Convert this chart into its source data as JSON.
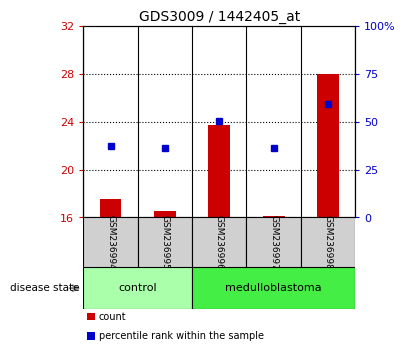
{
  "title": "GDS3009 / 1442405_at",
  "samples": [
    "GSM236994",
    "GSM236995",
    "GSM236996",
    "GSM236997",
    "GSM236998"
  ],
  "count_values": [
    17.5,
    16.5,
    23.7,
    16.1,
    28.0
  ],
  "percentile_values": [
    22.0,
    21.8,
    24.1,
    21.8,
    25.5
  ],
  "ylim_left": [
    16,
    32
  ],
  "ylim_right": [
    0,
    100
  ],
  "yticks_left": [
    16,
    20,
    24,
    28,
    32
  ],
  "yticks_right": [
    0,
    25,
    50,
    75,
    100
  ],
  "ytick_labels_right": [
    "0",
    "25",
    "50",
    "75",
    "100%"
  ],
  "bar_color": "#cc0000",
  "dot_color": "#0000cc",
  "bar_baseline": 16,
  "groups": [
    {
      "label": "control",
      "indices": [
        0,
        1
      ],
      "color": "#aaffaa"
    },
    {
      "label": "medulloblastoma",
      "indices": [
        2,
        3,
        4
      ],
      "color": "#44ee44"
    }
  ],
  "group_label": "disease state",
  "legend_items": [
    {
      "label": "count",
      "color": "#cc0000"
    },
    {
      "label": "percentile rank within the sample",
      "color": "#0000cc"
    }
  ],
  "tick_color_left": "#cc0000",
  "tick_color_right": "#0000cc",
  "background_color": "#ffffff",
  "plot_bg": "#ffffff",
  "grid_color": "#000000",
  "grid_ticks": [
    20,
    24,
    28
  ],
  "bar_width": 0.4,
  "sample_label_color": "#000000",
  "sample_bg_color": "#d0d0d0",
  "spine_color": "#000000"
}
